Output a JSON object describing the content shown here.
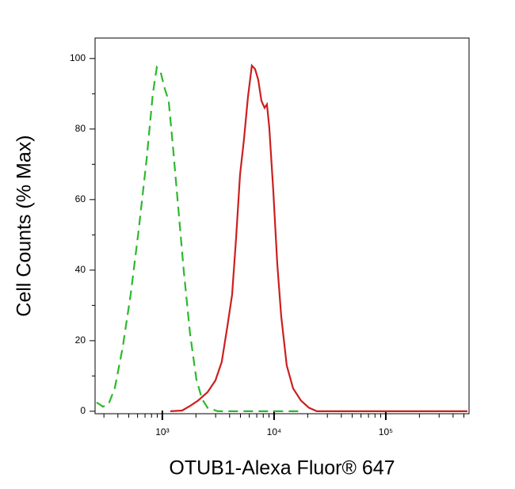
{
  "chart_data": {
    "type": "line",
    "x_label": "OTUB1-Alexa Fluor® 647",
    "y_label": "Cell Counts (% Max)",
    "xscale": "log",
    "xlim": [
      250,
      556000
    ],
    "ylim": [
      -0.7,
      105.8
    ],
    "xticks": [
      {
        "value": 1000,
        "label": "10³"
      },
      {
        "value": 10000,
        "label": "10⁴"
      },
      {
        "value": 100000,
        "label": "10⁵"
      }
    ],
    "xminorticks": [
      300,
      400,
      500,
      600,
      700,
      800,
      900,
      2000,
      3000,
      4000,
      5000,
      6000,
      7000,
      8000,
      9000,
      20000,
      30000,
      40000,
      50000,
      60000,
      70000,
      80000,
      90000,
      200000,
      300000,
      400000,
      500000
    ],
    "yticks": [
      0,
      20,
      40,
      60,
      80,
      100
    ],
    "yminorticks": [
      10,
      30,
      50,
      70,
      90
    ],
    "series": [
      {
        "color": "#2db82d",
        "style": "dashed",
        "x": [
          258,
          294,
          330,
          375,
          441,
          520,
          612,
          721,
          822,
          892,
          968,
          1050,
          1139,
          1236,
          1386,
          1553,
          1770,
          2018,
          2264,
          2537,
          3133,
          17400
        ],
        "values": [
          2.5,
          1.3,
          2,
          6.5,
          18,
          33,
          51,
          71,
          90,
          97.5,
          96,
          91.5,
          88,
          76,
          58,
          40,
          22,
          9,
          3.5,
          1,
          0,
          0
        ]
      },
      {
        "color": "#cc1f1f",
        "style": "solid",
        "x": [
          1178,
          1503,
          1770,
          2085,
          2537,
          2985,
          3402,
          3817,
          4210,
          4570,
          4957,
          5375,
          5834,
          6327,
          6761,
          7211,
          7705,
          8222,
          8630,
          9057,
          9840,
          10670,
          11580,
          12980,
          14790,
          17420,
          20500,
          24150,
          537000
        ],
        "values": [
          0,
          0.2,
          1.5,
          3,
          5.4,
          8.7,
          14,
          24,
          33,
          49,
          67,
          77,
          89,
          98,
          97,
          94,
          88,
          86,
          87,
          80.5,
          62.5,
          42,
          27,
          13,
          6.5,
          3,
          1,
          0,
          0
        ]
      }
    ]
  }
}
